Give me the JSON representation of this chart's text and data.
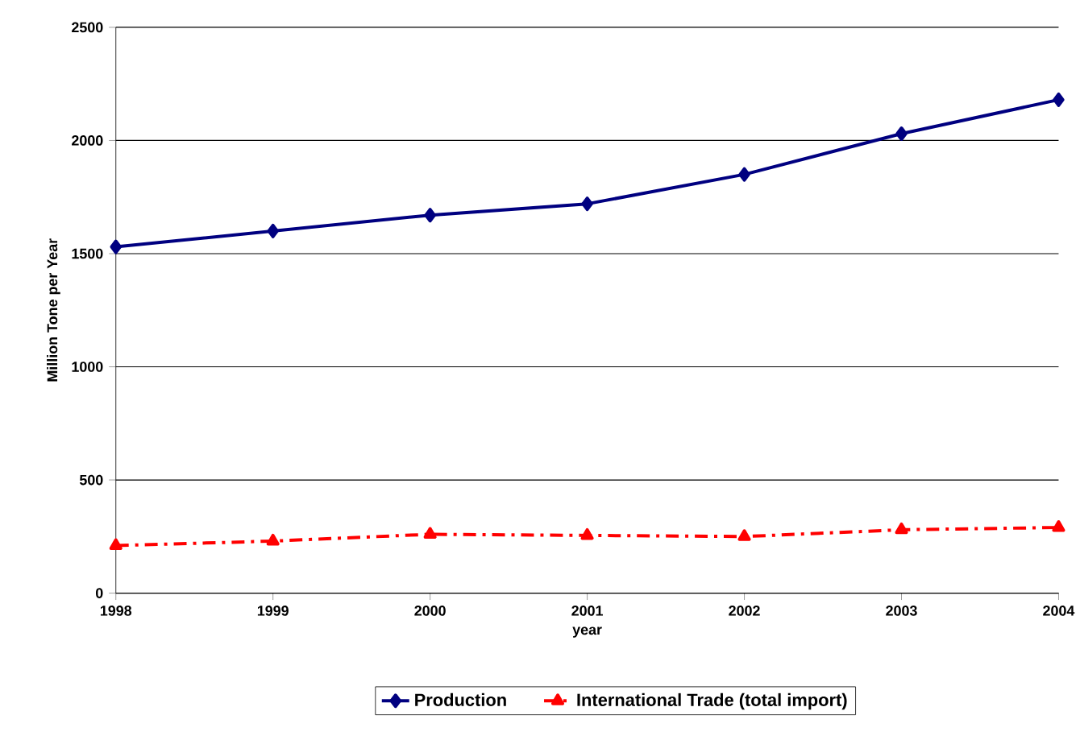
{
  "chart_data": {
    "type": "line",
    "xlabel": "year",
    "ylabel": "Million Tone per Year",
    "x": [
      1998,
      1999,
      2000,
      2001,
      2002,
      2003,
      2004
    ],
    "xlim": [
      1998,
      2004
    ],
    "xticks": [
      1998,
      1999,
      2000,
      2001,
      2002,
      2003,
      2004
    ],
    "ylim": [
      0,
      2500
    ],
    "yticks": [
      0,
      500,
      1000,
      1500,
      2000,
      2500
    ],
    "grid": "y",
    "legend": "bottom",
    "series": [
      {
        "name": "Production",
        "color": "#000080",
        "marker": "diamond",
        "line_style": "solid",
        "values": [
          1530,
          1600,
          1670,
          1720,
          1850,
          2030,
          2180
        ]
      },
      {
        "name": "International Trade (total import)",
        "color": "#ff0000",
        "marker": "triangle",
        "line_style": "dashed",
        "values": [
          210,
          230,
          260,
          255,
          250,
          280,
          290
        ]
      }
    ]
  }
}
